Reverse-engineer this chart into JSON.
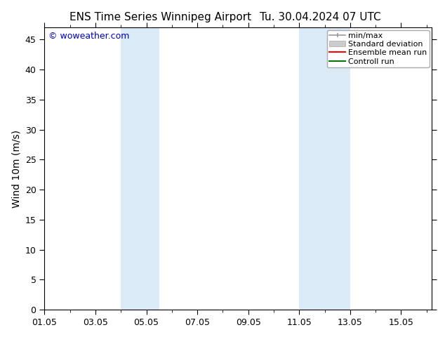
{
  "title_left": "ENS Time Series Winnipeg Airport",
  "title_right": "Tu. 30.04.2024 07 UTC",
  "ylabel": "Wind 10m (m/s)",
  "watermark": "© woweather.com",
  "ylim": [
    0,
    47
  ],
  "yticks": [
    0,
    5,
    10,
    15,
    20,
    25,
    30,
    35,
    40,
    45
  ],
  "x_min": 1.0,
  "x_max": 16.2,
  "xtick_labels": [
    "01.05",
    "03.05",
    "05.05",
    "07.05",
    "09.05",
    "11.05",
    "13.05",
    "15.05"
  ],
  "xtick_days": [
    1,
    3,
    5,
    7,
    9,
    11,
    13,
    15
  ],
  "shaded_bands": [
    {
      "start_day": 4.0,
      "end_day": 5.5
    },
    {
      "start_day": 11.0,
      "end_day": 13.0
    }
  ],
  "band_color": "#daeaf7",
  "background_color": "#ffffff",
  "legend_items": [
    {
      "label": "min/max",
      "color": "#999999",
      "style": "line_with_caps"
    },
    {
      "label": "Standard deviation",
      "color": "#cccccc",
      "style": "filled_box"
    },
    {
      "label": "Ensemble mean run",
      "color": "#ff0000",
      "style": "line"
    },
    {
      "label": "Controll run",
      "color": "#007700",
      "style": "line"
    }
  ],
  "title_fontsize": 11,
  "axis_label_fontsize": 10,
  "tick_fontsize": 9,
  "legend_fontsize": 8,
  "watermark_color": "#0000cc",
  "watermark_fontsize": 9
}
